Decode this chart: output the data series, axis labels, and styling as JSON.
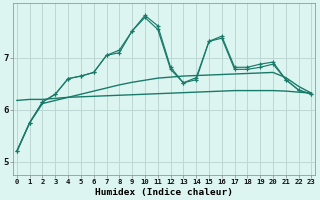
{
  "x": [
    0,
    1,
    2,
    3,
    4,
    5,
    6,
    7,
    8,
    9,
    10,
    11,
    12,
    13,
    14,
    15,
    16,
    17,
    18,
    19,
    20,
    21,
    22,
    23
  ],
  "line1": [
    5.2,
    5.75,
    6.15,
    6.3,
    6.6,
    6.65,
    6.72,
    7.05,
    7.1,
    7.52,
    7.78,
    7.55,
    6.78,
    6.52,
    6.58,
    7.32,
    7.38,
    6.78,
    6.78,
    6.82,
    6.88,
    6.58,
    6.38,
    6.3
  ],
  "line2": [
    5.2,
    5.75,
    6.15,
    6.3,
    6.6,
    6.65,
    6.72,
    7.05,
    7.15,
    7.52,
    7.82,
    7.62,
    6.82,
    6.52,
    6.62,
    7.32,
    7.42,
    6.82,
    6.82,
    6.88,
    6.92,
    6.58,
    6.38,
    6.3
  ],
  "line_flat": [
    6.18,
    6.2,
    6.2,
    6.22,
    6.24,
    6.25,
    6.26,
    6.27,
    6.28,
    6.29,
    6.3,
    6.31,
    6.32,
    6.33,
    6.34,
    6.35,
    6.36,
    6.37,
    6.37,
    6.37,
    6.37,
    6.36,
    6.34,
    6.32
  ],
  "line_slope": [
    5.2,
    5.75,
    6.12,
    6.18,
    6.24,
    6.3,
    6.36,
    6.42,
    6.48,
    6.53,
    6.57,
    6.61,
    6.63,
    6.65,
    6.66,
    6.67,
    6.68,
    6.69,
    6.7,
    6.71,
    6.72,
    6.62,
    6.45,
    6.32
  ],
  "bg_color": "#dcf5f0",
  "line_color": "#1a7a6a",
  "grid_color": "#bdd8d4",
  "xlabel": "Humidex (Indice chaleur)",
  "yticks": [
    5,
    6,
    7
  ],
  "xticks": [
    0,
    1,
    2,
    3,
    4,
    5,
    6,
    7,
    8,
    9,
    10,
    11,
    12,
    13,
    14,
    15,
    16,
    17,
    18,
    19,
    20,
    21,
    22,
    23
  ],
  "xlim": [
    -0.3,
    23.3
  ],
  "ylim": [
    4.75,
    8.05
  ]
}
